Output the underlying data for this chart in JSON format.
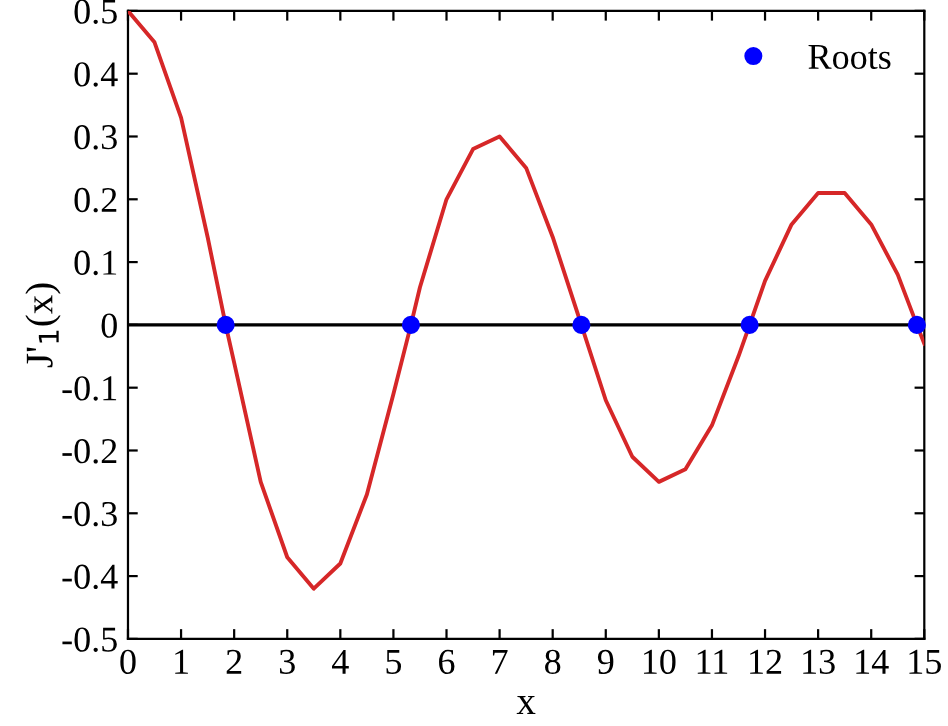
{
  "chart_data": {
    "type": "line",
    "xlabel": "x",
    "ylabel": "J'$_{1}$(x)",
    "series": [
      {
        "color": "#d62728",
        "x": [
          0,
          0.5,
          1,
          1.5,
          1.84,
          2,
          2.5,
          3,
          3.5,
          4,
          4.5,
          5,
          5.33,
          5.5,
          6,
          6.5,
          7,
          7.5,
          8,
          8.54,
          9,
          9.5,
          10,
          10.5,
          11,
          11.5,
          11.71,
          12,
          12.5,
          13,
          13.5,
          14,
          14.5,
          14.86,
          15
        ],
        "values": [
          0.5,
          0.45,
          0.33,
          0.14,
          0,
          -0.06,
          -0.25,
          -0.37,
          -0.42,
          -0.38,
          -0.27,
          -0.11,
          0,
          0.06,
          0.2,
          0.28,
          0.3,
          0.25,
          0.14,
          0,
          -0.12,
          -0.21,
          -0.25,
          -0.23,
          -0.16,
          -0.05,
          0,
          0.07,
          0.16,
          0.21,
          0.21,
          0.16,
          0.08,
          0,
          -0.03
        ]
      },
      {
        "type": "scatter",
        "name": "Roots",
        "color": "#0000ff",
        "marker": "circle",
        "x": [
          1.84,
          5.33,
          8.54,
          11.71,
          14.86
        ],
        "values": [
          0,
          0,
          0,
          0,
          0
        ]
      }
    ],
    "ref_lines": [
      {
        "axis": "y",
        "value": 0,
        "color": "#000000"
      }
    ],
    "xlim": [
      0,
      15
    ],
    "ylim": [
      -0.5,
      0.5
    ],
    "xticks": [
      0,
      1,
      2,
      3,
      4,
      5,
      6,
      7,
      8,
      9,
      10,
      11,
      12,
      13,
      14,
      15
    ],
    "yticks": [
      -0.5,
      -0.4,
      -0.3,
      -0.2,
      -0.1,
      0,
      0.1,
      0.2,
      0.3,
      0.4,
      0.5
    ],
    "legend": "top right",
    "grid": false
  }
}
